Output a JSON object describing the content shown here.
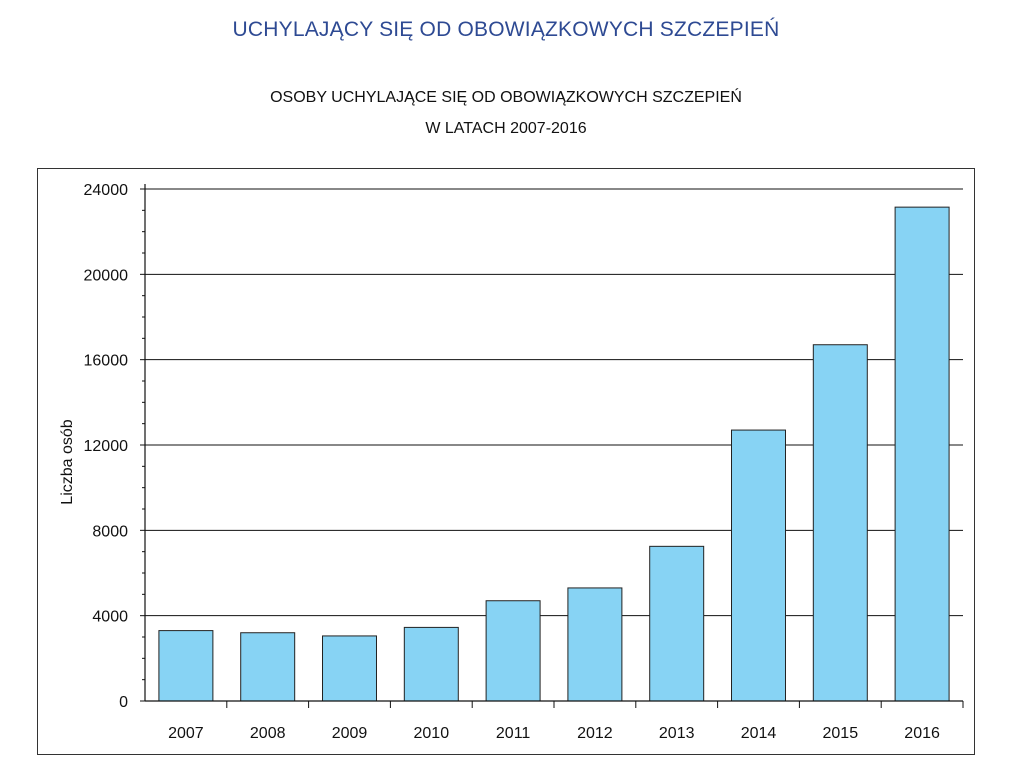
{
  "page": {
    "title": "UCHYLAJĄCY SIĘ OD OBOWIĄZKOWYCH SZCZEPIEŃ"
  },
  "chart_data": {
    "type": "bar",
    "title": "OSOBY UCHYLAJĄCE SIĘ OD OBOWIĄZKOWYCH SZCZEPIEŃ",
    "subtitle": "W LATACH 2007-2016",
    "xlabel": "",
    "ylabel": "Liczba osób",
    "categories": [
      "2007",
      "2008",
      "2009",
      "2010",
      "2011",
      "2012",
      "2013",
      "2014",
      "2015",
      "2016"
    ],
    "values": [
      3300,
      3200,
      3050,
      3450,
      4700,
      5300,
      7250,
      12700,
      16700,
      23150
    ],
    "ylim": [
      0,
      24000
    ],
    "yticks": [
      0,
      4000,
      8000,
      12000,
      16000,
      20000,
      24000
    ],
    "grid": true,
    "legend": "none",
    "bar_color": "#87d3f4",
    "bar_edge_color": "#222222"
  }
}
